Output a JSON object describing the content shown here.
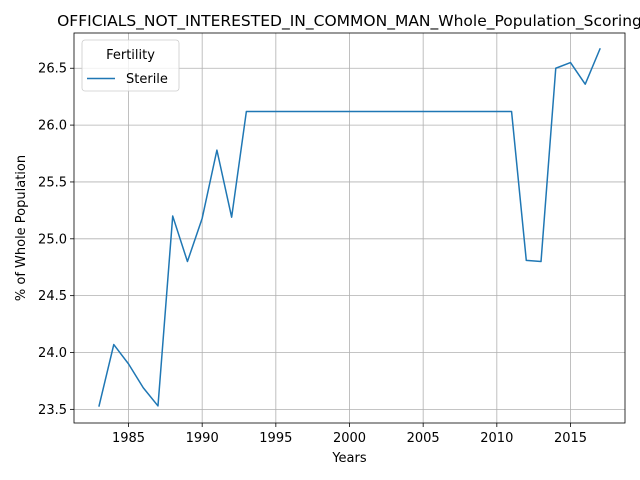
{
  "chart_data": {
    "type": "line",
    "title": "OFFICIALS_NOT_INTERESTED_IN_COMMON_MAN_Whole_Population_Scoring",
    "xlabel": "Years",
    "ylabel": "% of Whole Population",
    "xlim": [
      1981.3,
      2018.7
    ],
    "ylim": [
      23.38,
      26.81
    ],
    "grid": true,
    "x_ticks": [
      1985,
      1990,
      1995,
      2000,
      2005,
      2010,
      2015
    ],
    "y_ticks": [
      23.5,
      24.0,
      24.5,
      25.0,
      25.5,
      26.0,
      26.5
    ],
    "legend": {
      "title": "Fertility",
      "placement": "top-left",
      "entries": [
        "Sterile"
      ]
    },
    "series": [
      {
        "name": "Sterile",
        "color": "#1f77b4",
        "x": [
          1983,
          1984,
          1985,
          1986,
          1987,
          1988,
          1989,
          1990,
          1991,
          1992,
          1993,
          1994,
          1995,
          1996,
          1997,
          1998,
          1999,
          2000,
          2001,
          2002,
          2003,
          2004,
          2005,
          2006,
          2007,
          2008,
          2009,
          2010,
          2011,
          2012,
          2013,
          2014,
          2015,
          2016,
          2017
        ],
        "y": [
          23.53,
          24.07,
          23.9,
          23.69,
          23.53,
          25.2,
          24.8,
          25.18,
          25.78,
          25.19,
          26.12,
          26.12,
          26.12,
          26.12,
          26.12,
          26.12,
          26.12,
          26.12,
          26.12,
          26.12,
          26.12,
          26.12,
          26.12,
          26.12,
          26.12,
          26.12,
          26.12,
          26.12,
          26.12,
          24.81,
          24.8,
          26.5,
          26.55,
          26.36,
          26.67
        ]
      }
    ]
  }
}
